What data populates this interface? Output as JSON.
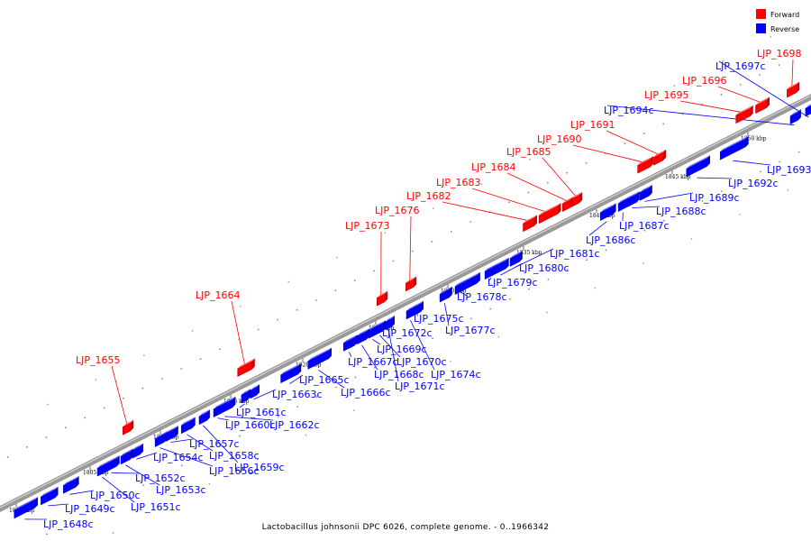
{
  "caption": "Lactobacillus johnsonii DPC 6026, complete genome. - 0..1966342",
  "legend": [
    {
      "label": "Forward",
      "color": "#ff0000"
    },
    {
      "label": "Reverse",
      "color": "#0000ff"
    }
  ],
  "colors": {
    "forward": "#ff0000",
    "reverse": "#0000ff",
    "backbone": "#888888"
  },
  "ticks": [
    "1800 kbp",
    "1805 kbp",
    "1810 kbp",
    "1815 kbp",
    "1820 kbp",
    "1825 kbp",
    "1830 kbp",
    "1835 kbp",
    "1840 kbp",
    "1845 kbp",
    "1850 kbp"
  ],
  "genes": [
    {
      "name": "LJP_1648c",
      "strand": "reverse"
    },
    {
      "name": "LJP_1649c",
      "strand": "reverse"
    },
    {
      "name": "LJP_1650c",
      "strand": "reverse"
    },
    {
      "name": "LJP_1651c",
      "strand": "reverse"
    },
    {
      "name": "LJP_1652c",
      "strand": "reverse"
    },
    {
      "name": "LJP_1653c",
      "strand": "reverse"
    },
    {
      "name": "LJP_1654c",
      "strand": "reverse"
    },
    {
      "name": "LJP_1655",
      "strand": "forward"
    },
    {
      "name": "LJP_1656c",
      "strand": "reverse"
    },
    {
      "name": "LJP_1657c",
      "strand": "reverse"
    },
    {
      "name": "LJP_1658c",
      "strand": "reverse"
    },
    {
      "name": "LJP_1659c",
      "strand": "reverse"
    },
    {
      "name": "LJP_1660c",
      "strand": "reverse"
    },
    {
      "name": "LJP_1661c",
      "strand": "reverse"
    },
    {
      "name": "LJP_1662c",
      "strand": "reverse"
    },
    {
      "name": "LJP_1663c",
      "strand": "reverse"
    },
    {
      "name": "LJP_1664",
      "strand": "forward"
    },
    {
      "name": "LJP_1665c",
      "strand": "reverse"
    },
    {
      "name": "LJP_1666c",
      "strand": "reverse"
    },
    {
      "name": "LJP_1667c",
      "strand": "reverse"
    },
    {
      "name": "LJP_1668c",
      "strand": "reverse"
    },
    {
      "name": "LJP_1669c",
      "strand": "reverse"
    },
    {
      "name": "LJP_1670c",
      "strand": "reverse"
    },
    {
      "name": "LJP_1671c",
      "strand": "reverse"
    },
    {
      "name": "LJP_1672c",
      "strand": "reverse"
    },
    {
      "name": "LJP_1673",
      "strand": "forward"
    },
    {
      "name": "LJP_1674c",
      "strand": "reverse"
    },
    {
      "name": "LJP_1675c",
      "strand": "reverse"
    },
    {
      "name": "LJP_1676",
      "strand": "forward"
    },
    {
      "name": "LJP_1677c",
      "strand": "reverse"
    },
    {
      "name": "LJP_1678c",
      "strand": "reverse"
    },
    {
      "name": "LJP_1679c",
      "strand": "reverse"
    },
    {
      "name": "LJP_1680c",
      "strand": "reverse"
    },
    {
      "name": "LJP_1681c",
      "strand": "reverse"
    },
    {
      "name": "LJP_1682",
      "strand": "forward"
    },
    {
      "name": "LJP_1683",
      "strand": "forward"
    },
    {
      "name": "LJP_1684",
      "strand": "forward"
    },
    {
      "name": "LJP_1685",
      "strand": "forward"
    },
    {
      "name": "LJP_1686c",
      "strand": "reverse"
    },
    {
      "name": "LJP_1687c",
      "strand": "reverse"
    },
    {
      "name": "LJP_1688c",
      "strand": "reverse"
    },
    {
      "name": "LJP_1689c",
      "strand": "reverse"
    },
    {
      "name": "LJP_1690",
      "strand": "forward"
    },
    {
      "name": "LJP_1691",
      "strand": "forward"
    },
    {
      "name": "LJP_1692c",
      "strand": "reverse"
    },
    {
      "name": "LJP_1693c",
      "strand": "reverse"
    },
    {
      "name": "LJP_1694c",
      "strand": "reverse"
    },
    {
      "name": "LJP_1695",
      "strand": "forward"
    },
    {
      "name": "LJP_1696",
      "strand": "forward"
    },
    {
      "name": "LJP_1697c",
      "strand": "reverse"
    },
    {
      "name": "LJP_1698",
      "strand": "forward"
    }
  ]
}
